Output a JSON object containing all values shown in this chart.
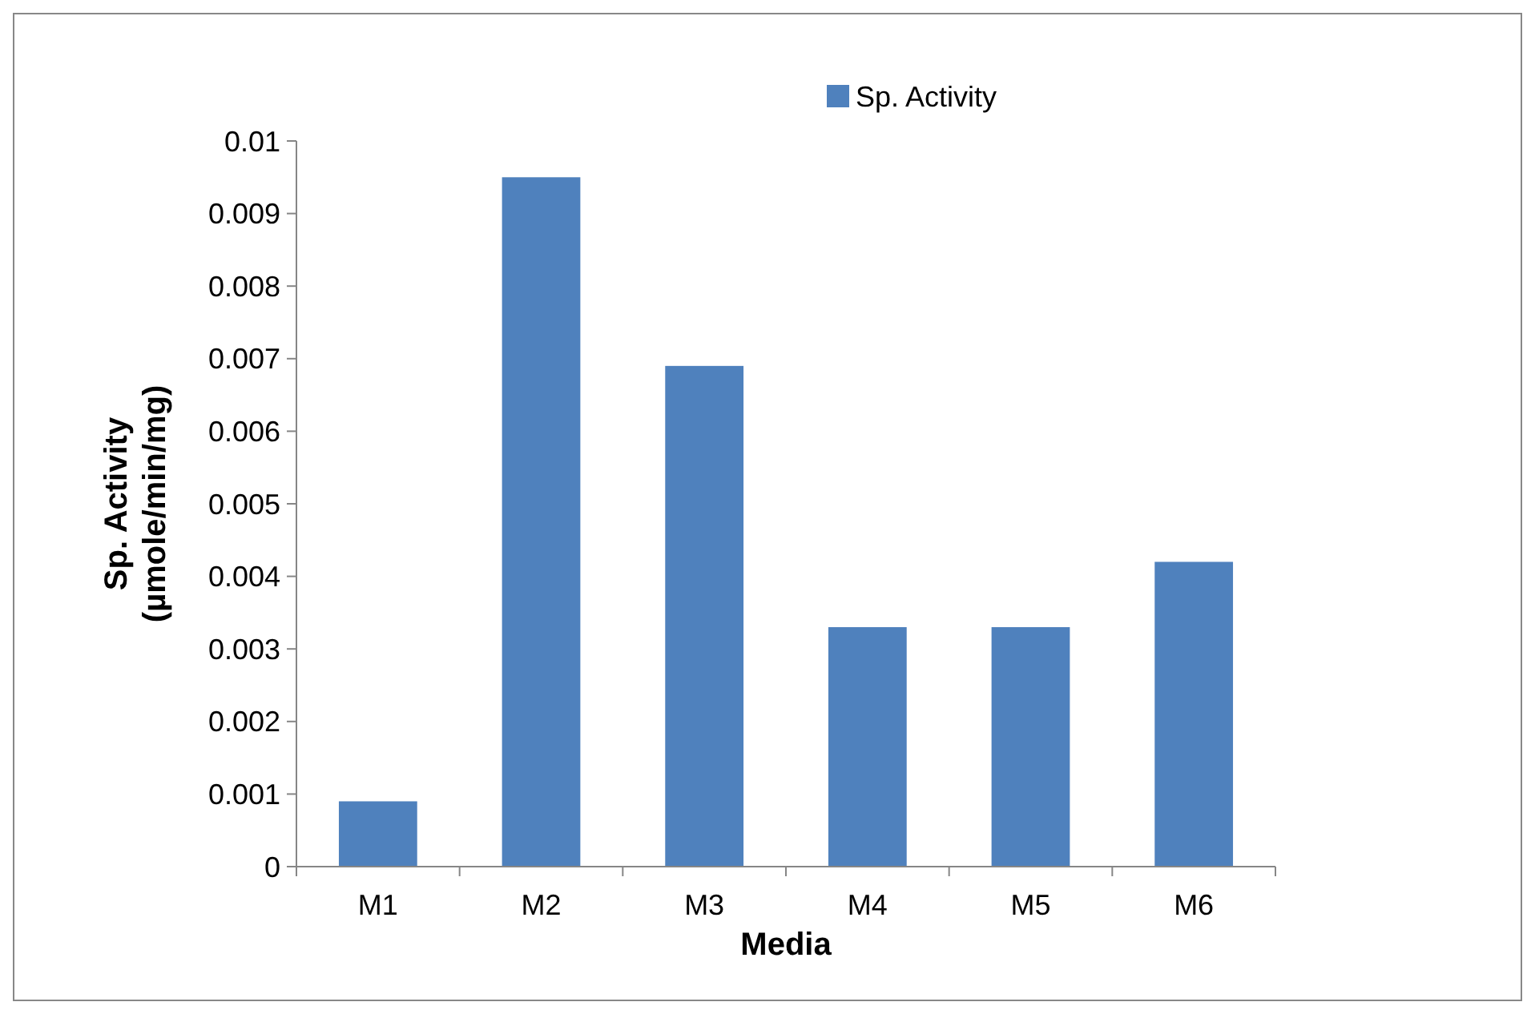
{
  "chart_data": {
    "type": "bar",
    "xlabel": "Media",
    "ylabel": "Sp. Activity\n(µmole/min/mg)",
    "categories": [
      "M1",
      "M2",
      "M3",
      "M4",
      "M5",
      "M6"
    ],
    "series": [
      {
        "name": "Sp. Activity",
        "color": "#4f81bd",
        "values": [
          0.0009,
          0.0095,
          0.0069,
          0.0033,
          0.0033,
          0.0042
        ]
      }
    ],
    "ylim": [
      0,
      0.01
    ],
    "yticks": [
      0,
      0.001,
      0.002,
      0.003,
      0.004,
      0.005,
      0.006,
      0.007,
      0.008,
      0.009,
      0.01
    ],
    "grid": false,
    "legend": "top right"
  }
}
